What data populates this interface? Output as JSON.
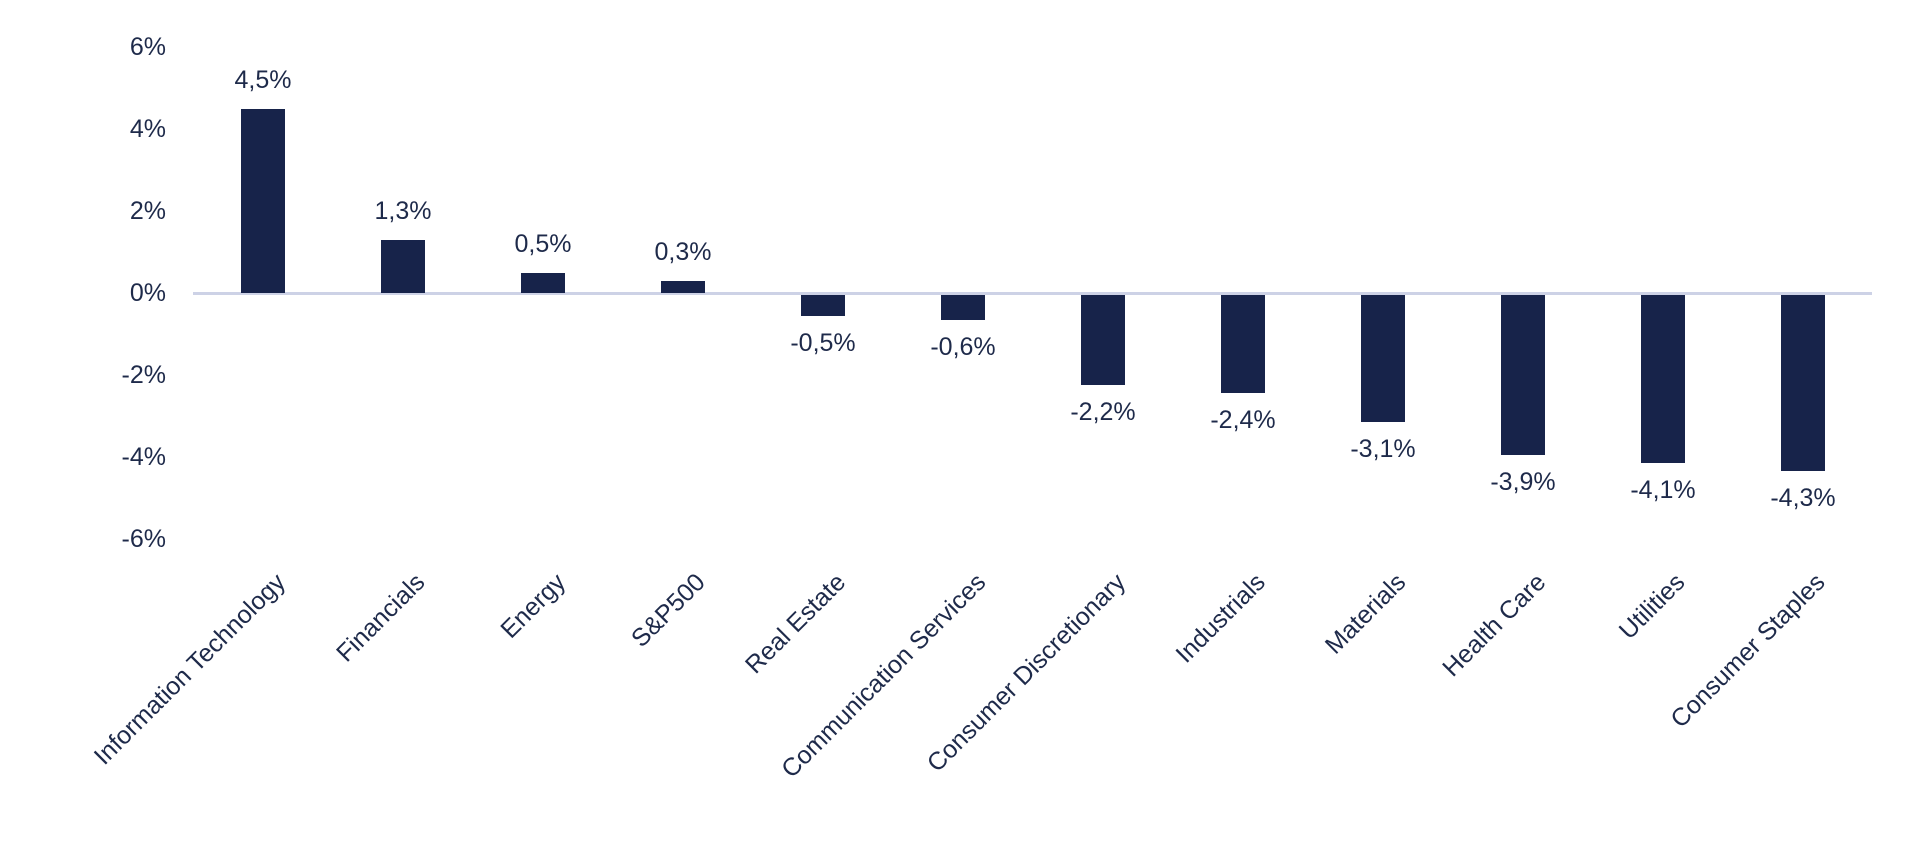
{
  "chart_data": {
    "type": "bar",
    "title": "",
    "xlabel": "",
    "ylabel": "",
    "ylim": [
      -6,
      6
    ],
    "yticks": [
      "6%",
      "4%",
      "2%",
      "0%",
      "-2%",
      "-4%",
      "-6%"
    ],
    "grid": false,
    "legend": null,
    "bar_color": "#17234a",
    "baseline_color": "#cdd2e6",
    "categories": [
      "Information Technology",
      "Financials",
      "Energy",
      "S&P500",
      "Real Estate",
      "Communication Services",
      "Consumer Discretionary",
      "Industrials",
      "Materials",
      "Health Care",
      "Utilities",
      "Consumer Staples"
    ],
    "values": [
      4.5,
      1.3,
      0.5,
      0.3,
      -0.5,
      -0.6,
      -2.2,
      -2.4,
      -3.1,
      -3.9,
      -4.1,
      -4.3
    ],
    "data_labels": [
      "4,5%",
      "1,3%",
      "0,5%",
      "0,3%",
      "-0,5%",
      "-0,6%",
      "-2,2%",
      "-2,4%",
      "-3,1%",
      "-3,9%",
      "-4,1%",
      "-4,3%"
    ]
  }
}
